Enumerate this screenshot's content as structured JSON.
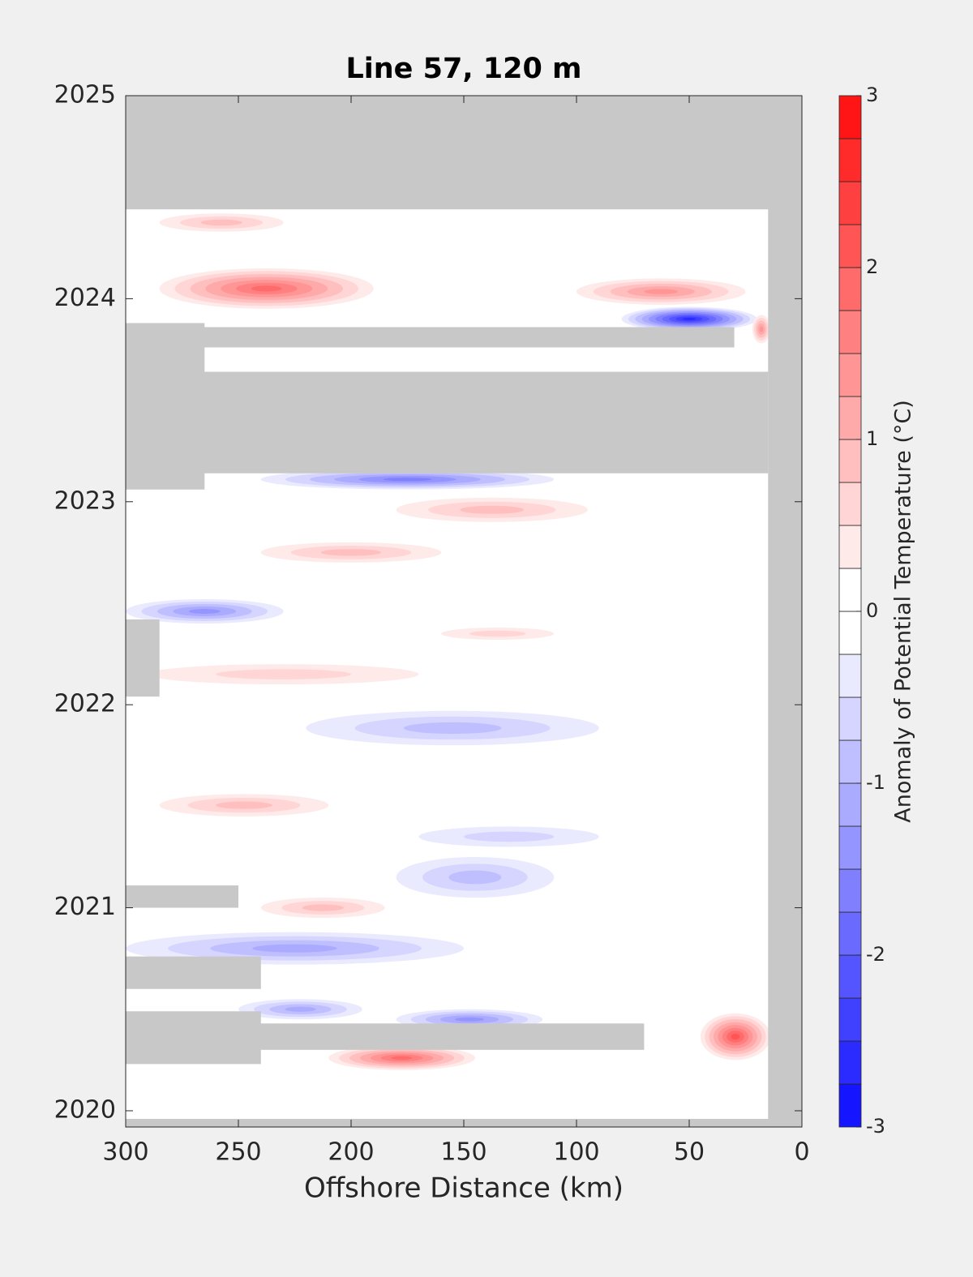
{
  "chart_data": {
    "type": "contour",
    "title": "Line 57, 120 m",
    "x_label": "Offshore Distance (km)",
    "xlim": [
      300,
      0
    ],
    "xticks": [
      300,
      250,
      200,
      150,
      100,
      50,
      0
    ],
    "ylim": [
      2019.92,
      2025
    ],
    "yticks": [
      2020,
      2021,
      2022,
      2023,
      2024,
      2025
    ],
    "colorbar": {
      "label": "Anomaly of Potential Temperature (°C)",
      "lim": [
        -3,
        3
      ],
      "ticks": [
        -3,
        -2,
        -1,
        0,
        1,
        2,
        3
      ],
      "bands": 24,
      "low_color": "#0000ff",
      "mid_color": "#ffffff",
      "high_color": "#ff0000"
    },
    "missing_color": "#c8c8c8",
    "anomalies": [
      {
        "x": [
          285,
          230
        ],
        "y": [
          2024.33,
          2024.42
        ],
        "value": 0.75
      },
      {
        "x": [
          285,
          190
        ],
        "y": [
          2023.95,
          2024.15
        ],
        "value": 1.75
      },
      {
        "x": [
          100,
          25
        ],
        "y": [
          2023.97,
          2024.1
        ],
        "value": 1.25
      },
      {
        "x": [
          80,
          20
        ],
        "y": [
          2023.84,
          2023.96
        ],
        "value": -2.5
      },
      {
        "x": [
          22,
          14
        ],
        "y": [
          2023.78,
          2023.92
        ],
        "value": 1.25
      },
      {
        "x": [
          240,
          110
        ],
        "y": [
          2023.06,
          2023.16
        ],
        "value": -1.5
      },
      {
        "x": [
          180,
          95
        ],
        "y": [
          2022.9,
          2023.02
        ],
        "value": 0.75
      },
      {
        "x": [
          240,
          160
        ],
        "y": [
          2022.7,
          2022.8
        ],
        "value": 0.75
      },
      {
        "x": [
          300,
          230
        ],
        "y": [
          2022.4,
          2022.52
        ],
        "value": -1.25
      },
      {
        "x": [
          290,
          170
        ],
        "y": [
          2022.1,
          2022.2
        ],
        "value": 0.5
      },
      {
        "x": [
          160,
          110
        ],
        "y": [
          2022.32,
          2022.38
        ],
        "value": 0.5
      },
      {
        "x": [
          220,
          90
        ],
        "y": [
          2021.8,
          2021.97
        ],
        "value": -0.75
      },
      {
        "x": [
          285,
          210
        ],
        "y": [
          2021.45,
          2021.56
        ],
        "value": 0.75
      },
      {
        "x": [
          170,
          90
        ],
        "y": [
          2021.3,
          2021.4
        ],
        "value": -0.5
      },
      {
        "x": [
          180,
          110
        ],
        "y": [
          2021.05,
          2021.25
        ],
        "value": -0.75
      },
      {
        "x": [
          240,
          185
        ],
        "y": [
          2020.95,
          2021.05
        ],
        "value": 0.75
      },
      {
        "x": [
          300,
          150
        ],
        "y": [
          2020.72,
          2020.88
        ],
        "value": -1.0
      },
      {
        "x": [
          45,
          14
        ],
        "y": [
          2020.25,
          2020.48
        ],
        "value": 2.0
      },
      {
        "x": [
          210,
          145
        ],
        "y": [
          2020.2,
          2020.32
        ],
        "value": 1.75
      },
      {
        "x": [
          180,
          115
        ],
        "y": [
          2020.4,
          2020.5
        ],
        "value": -1.25
      },
      {
        "x": [
          250,
          195
        ],
        "y": [
          2020.45,
          2020.55
        ],
        "value": -1.0
      }
    ],
    "missing": [
      {
        "x": [
          300,
          0
        ],
        "y": [
          2024.44,
          2025
        ]
      },
      {
        "x": [
          15,
          0
        ],
        "y": [
          2019.92,
          2025
        ]
      },
      {
        "x": [
          300,
          0
        ],
        "y": [
          2019.92,
          2019.96
        ]
      },
      {
        "x": [
          300,
          15
        ],
        "y": [
          2023.14,
          2023.64
        ]
      },
      {
        "x": [
          300,
          265
        ],
        "y": [
          2023.06,
          2023.88
        ]
      },
      {
        "x": [
          300,
          30
        ],
        "y": [
          2023.76,
          2023.86
        ]
      },
      {
        "x": [
          300,
          285
        ],
        "y": [
          2022.04,
          2022.42
        ]
      },
      {
        "x": [
          300,
          250
        ],
        "y": [
          2021.0,
          2021.11
        ]
      },
      {
        "x": [
          300,
          240
        ],
        "y": [
          2020.6,
          2020.76
        ]
      },
      {
        "x": [
          300,
          70
        ],
        "y": [
          2020.3,
          2020.43
        ]
      },
      {
        "x": [
          300,
          240
        ],
        "y": [
          2020.23,
          2020.49
        ]
      }
    ]
  }
}
